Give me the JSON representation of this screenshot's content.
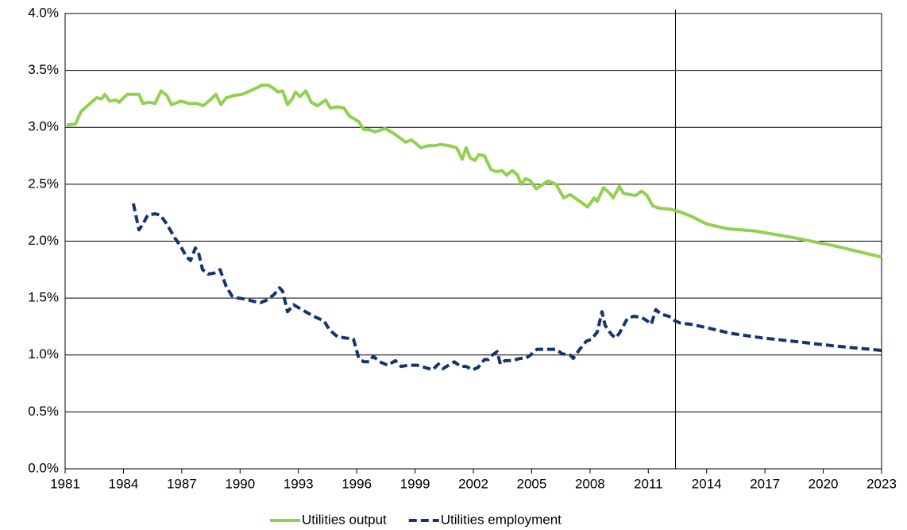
{
  "chart_data": {
    "type": "line",
    "xlim": [
      1981,
      2023
    ],
    "xticks": [
      1981,
      1984,
      1987,
      1990,
      1993,
      1996,
      1999,
      2002,
      2005,
      2008,
      2011,
      2014,
      2017,
      2020,
      2023
    ],
    "ylim": [
      0,
      4
    ],
    "yticks": [
      {
        "value": 0,
        "label": "0.0%"
      },
      {
        "value": 0.5,
        "label": "0.5%"
      },
      {
        "value": 1,
        "label": "1.0%"
      },
      {
        "value": 1.5,
        "label": "1.5%"
      },
      {
        "value": 2,
        "label": "2.0%"
      },
      {
        "value": 2.5,
        "label": "2.5%"
      },
      {
        "value": 3,
        "label": "3.0%"
      },
      {
        "value": 3.5,
        "label": "3.5%"
      },
      {
        "value": 4,
        "label": "4.0%"
      }
    ],
    "grid": true,
    "legend": "bottom",
    "vline_x": 2012.4,
    "series": [
      {
        "name": "Utilities output",
        "color": "#92d050",
        "dashed": false,
        "x": [
          1981.08,
          1981.53,
          1981.82,
          1982.35,
          1982.63,
          1982.88,
          1983.04,
          1983.29,
          1983.61,
          1983.78,
          1984.19,
          1984.8,
          1985.0,
          1985.33,
          1985.62,
          1985.94,
          1986.23,
          1986.47,
          1986.96,
          1987.37,
          1987.78,
          1988.11,
          1988.52,
          1988.76,
          1989.01,
          1989.29,
          1989.7,
          1990.11,
          1990.64,
          1991.13,
          1991.46,
          1991.74,
          1991.95,
          1992.19,
          1992.44,
          1992.68,
          1992.85,
          1993.09,
          1993.38,
          1993.66,
          1993.99,
          1994.4,
          1994.64,
          1995.01,
          1995.34,
          1995.62,
          1996.11,
          1996.36,
          1996.65,
          1996.93,
          1997.46,
          1997.87,
          1998.28,
          1998.52,
          1998.81,
          1999.1,
          1999.3,
          1999.71,
          2000.04,
          2000.32,
          2000.73,
          2001.14,
          2001.43,
          2001.63,
          2001.84,
          2002.08,
          2002.28,
          2002.57,
          2002.9,
          2003.18,
          2003.47,
          2003.71,
          2004.0,
          2004.28,
          2004.45,
          2004.69,
          2004.94,
          2005.23,
          2005.84,
          2006.25,
          2006.65,
          2006.98,
          2007.88,
          2008.21,
          2008.37,
          2008.7,
          2009.02,
          2009.19,
          2009.51,
          2009.72,
          2010.33,
          2010.66,
          2010.94,
          2011.23,
          2011.56,
          2012.17,
          2012.58,
          2013.19,
          2014.01,
          2015.03,
          2016.46,
          2018.5,
          2020.54,
          2023.0
        ],
        "values": [
          3.02,
          3.03,
          3.14,
          3.22,
          3.26,
          3.25,
          3.29,
          3.23,
          3.24,
          3.22,
          3.29,
          3.29,
          3.21,
          3.22,
          3.21,
          3.32,
          3.28,
          3.2,
          3.23,
          3.21,
          3.21,
          3.19,
          3.25,
          3.29,
          3.2,
          3.26,
          3.28,
          3.29,
          3.33,
          3.37,
          3.37,
          3.34,
          3.31,
          3.32,
          3.2,
          3.25,
          3.31,
          3.27,
          3.32,
          3.22,
          3.19,
          3.24,
          3.17,
          3.18,
          3.17,
          3.1,
          3.05,
          2.98,
          2.98,
          2.96,
          2.99,
          2.95,
          2.9,
          2.87,
          2.89,
          2.85,
          2.82,
          2.84,
          2.84,
          2.85,
          2.84,
          2.82,
          2.72,
          2.82,
          2.73,
          2.71,
          2.76,
          2.75,
          2.63,
          2.61,
          2.62,
          2.58,
          2.62,
          2.58,
          2.5,
          2.55,
          2.53,
          2.46,
          2.53,
          2.5,
          2.38,
          2.41,
          2.3,
          2.38,
          2.35,
          2.47,
          2.42,
          2.38,
          2.48,
          2.42,
          2.4,
          2.44,
          2.4,
          2.31,
          2.29,
          2.28,
          2.26,
          2.22,
          2.15,
          2.11,
          2.09,
          2.03,
          1.96,
          1.86
        ]
      },
      {
        "name": "Utilities employment",
        "color": "#17336e",
        "dashed": true,
        "x": [
          1984.51,
          1984.8,
          1985.0,
          1985.25,
          1985.62,
          1985.9,
          1986.23,
          1986.64,
          1986.96,
          1987.25,
          1987.45,
          1987.7,
          1987.86,
          1988.07,
          1988.35,
          1988.68,
          1988.97,
          1989.29,
          1989.58,
          1989.91,
          1990.31,
          1990.72,
          1991.05,
          1991.34,
          1991.74,
          1992.03,
          1992.19,
          1992.44,
          1992.76,
          1993.17,
          1993.58,
          1993.91,
          1994.32,
          1994.6,
          1995.01,
          1995.42,
          1995.83,
          1996.11,
          1996.36,
          1996.65,
          1996.85,
          1997.18,
          1997.59,
          1997.99,
          1998.28,
          1998.69,
          1999.1,
          1999.51,
          1999.91,
          2000.2,
          2000.44,
          2000.73,
          2001.02,
          2001.34,
          2001.63,
          2001.96,
          2002.24,
          2002.57,
          2002.77,
          2002.98,
          2003.22,
          2003.39,
          2003.63,
          2004.0,
          2004.41,
          2004.69,
          2004.94,
          2005.27,
          2005.84,
          2006.25,
          2006.57,
          2006.98,
          2007.14,
          2007.47,
          2007.8,
          2008.08,
          2008.37,
          2008.62,
          2008.78,
          2009.11,
          2009.31,
          2009.51,
          2009.92,
          2010.25,
          2010.66,
          2010.94,
          2011.15,
          2011.39,
          2011.64,
          2012.05,
          2012.37,
          2012.66,
          2013.19,
          2014.01,
          2015.23,
          2016.87,
          2018.5,
          2020.54,
          2023.0
        ],
        "values": [
          2.33,
          2.1,
          2.15,
          2.23,
          2.24,
          2.23,
          2.15,
          2.03,
          1.95,
          1.86,
          1.83,
          1.94,
          1.9,
          1.75,
          1.71,
          1.72,
          1.75,
          1.6,
          1.52,
          1.5,
          1.49,
          1.47,
          1.46,
          1.48,
          1.53,
          1.59,
          1.56,
          1.38,
          1.44,
          1.4,
          1.36,
          1.33,
          1.3,
          1.22,
          1.16,
          1.15,
          1.14,
          0.97,
          0.94,
          0.94,
          0.99,
          0.94,
          0.91,
          0.95,
          0.9,
          0.91,
          0.91,
          0.89,
          0.87,
          0.92,
          0.88,
          0.91,
          0.94,
          0.9,
          0.9,
          0.87,
          0.89,
          0.96,
          0.96,
          1.0,
          1.03,
          0.92,
          0.95,
          0.95,
          0.97,
          0.97,
          1.0,
          1.05,
          1.05,
          1.05,
          1.01,
          1.0,
          0.97,
          1.05,
          1.12,
          1.14,
          1.2,
          1.38,
          1.26,
          1.18,
          1.15,
          1.19,
          1.32,
          1.34,
          1.33,
          1.3,
          1.27,
          1.4,
          1.36,
          1.34,
          1.3,
          1.28,
          1.27,
          1.24,
          1.19,
          1.15,
          1.12,
          1.08,
          1.04
        ]
      }
    ]
  }
}
